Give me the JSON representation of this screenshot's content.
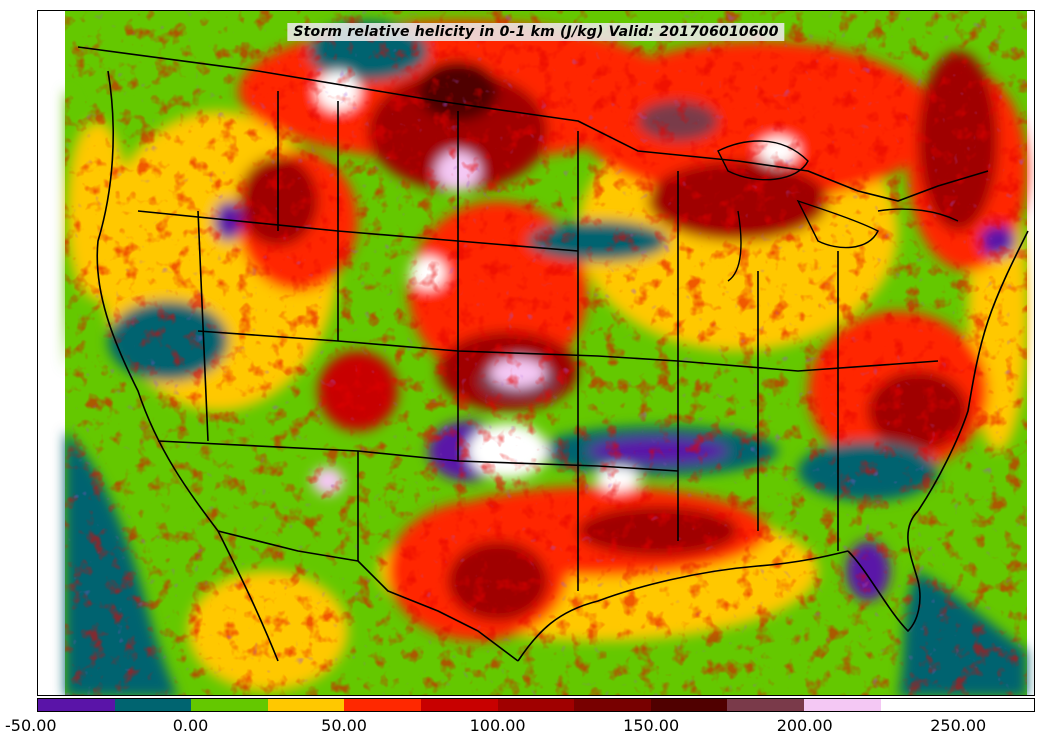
{
  "title": "Storm relative helicity in 0-1 km (J/kg) Valid: 201706010600",
  "colorbar": {
    "min": -50,
    "max": 275,
    "step": 25,
    "tick_labels": [
      "-50.00",
      "0.00",
      "50.00",
      "100.00",
      "150.00",
      "200.00",
      "250.00"
    ],
    "tick_values": [
      -50,
      0,
      50,
      100,
      150,
      200,
      250
    ],
    "colors": [
      "#5a14a8",
      "#006470",
      "#64c800",
      "#ffc800",
      "#ff2800",
      "#c80000",
      "#a00000",
      "#780000",
      "#500000",
      "#7a3a4a",
      "#f4c8f4",
      "#ffffff",
      "#ffffff"
    ]
  }
}
